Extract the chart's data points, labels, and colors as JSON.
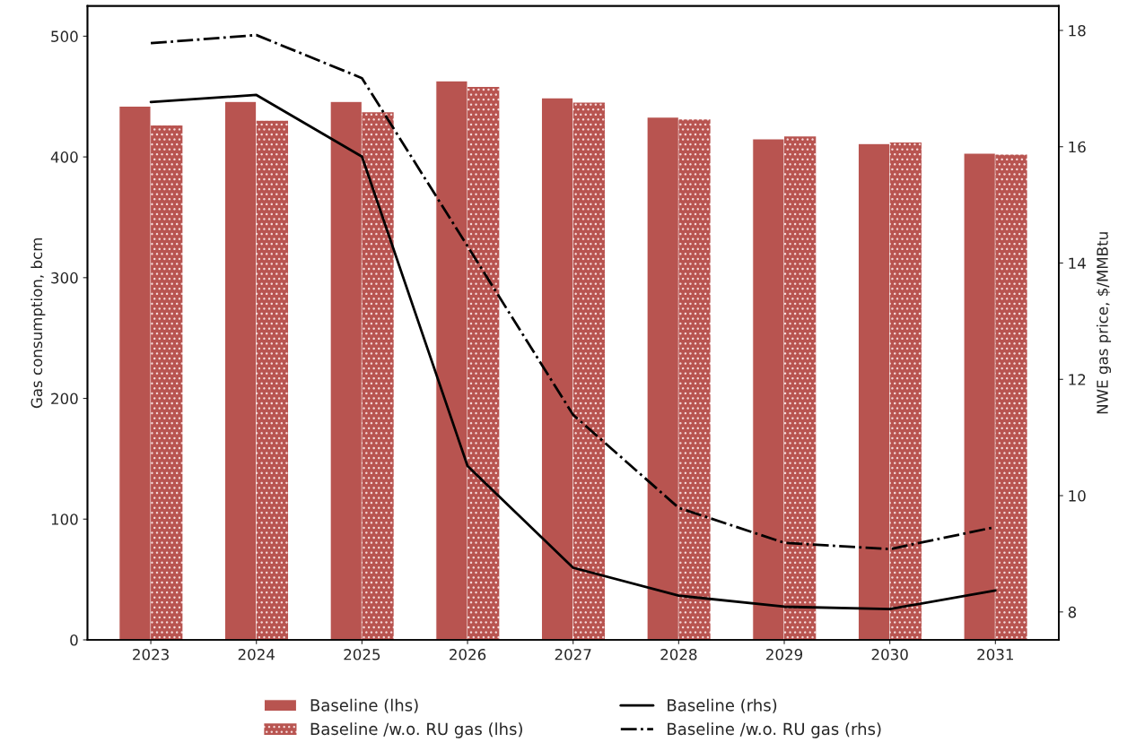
{
  "chart_data": {
    "type": "bar",
    "categories": [
      "2023",
      "2024",
      "2025",
      "2026",
      "2027",
      "2028",
      "2029",
      "2030",
      "2031"
    ],
    "ylabel": "Gas consumption, bcm",
    "y2label": "NWE gas price, $/MMBtu",
    "ylim": [
      0,
      525
    ],
    "yticks": [
      0,
      100,
      200,
      300,
      400,
      500
    ],
    "y2lim": [
      7.52,
      18.42
    ],
    "y2ticks": [
      8,
      10,
      12,
      14,
      16,
      18
    ],
    "grid": false,
    "legend": "bottom",
    "series": [
      {
        "name": "Baseline (lhs)",
        "color": "#b85450",
        "values": [
          442,
          446,
          446,
          463,
          449,
          433,
          415,
          411,
          403
        ]
      },
      {
        "name": "Baseline /w.o. RU gas (lhs)",
        "color": "#b85450",
        "values": [
          426,
          430,
          437,
          458,
          445,
          431,
          417,
          412,
          402
        ]
      },
      {
        "name": "Baseline (rhs)",
        "type": "line",
        "axis": "y2",
        "color": "#000000",
        "line_style": "solid",
        "values": [
          16.77,
          16.89,
          15.83,
          10.51,
          8.76,
          8.28,
          8.09,
          8.05,
          8.37
        ]
      },
      {
        "name": "Baseline /w.o. RU gas (rhs)",
        "type": "line",
        "axis": "y2",
        "color": "#000000",
        "line_style": "dashdot",
        "values": [
          17.78,
          17.92,
          17.18,
          14.29,
          11.39,
          9.79,
          9.19,
          9.08,
          9.46
        ]
      }
    ]
  }
}
